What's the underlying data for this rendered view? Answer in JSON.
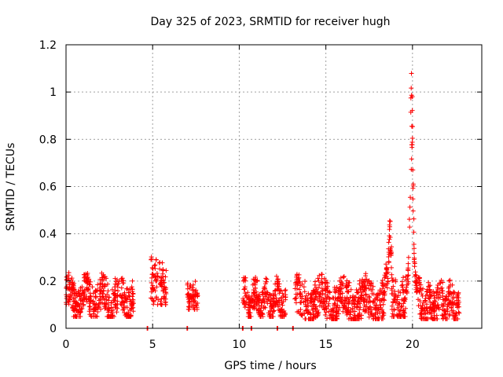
{
  "chart_data": {
    "type": "scatter",
    "title": "Day 325 of 2023, SRMTID for receiver hugh",
    "xlabel": "GPS time / hours",
    "ylabel": "SRMTID / TECUs",
    "xlim": [
      0,
      24
    ],
    "ylim": [
      0,
      1.2
    ],
    "xticks": [
      0,
      5,
      10,
      15,
      20
    ],
    "xtick_labels": [
      "0",
      "5",
      "10",
      "15",
      "20"
    ],
    "yticks": [
      0,
      0.2,
      0.4,
      0.6,
      0.8,
      1.0,
      1.2
    ],
    "ytick_labels": [
      "0",
      "0.2",
      "0.4",
      "0.6",
      "0.8",
      "1",
      "1.2"
    ],
    "grid": true,
    "marker": "+",
    "color": "#ff0000",
    "series": [
      {
        "name": "SRMTID",
        "clusters": [
          {
            "x_start": 0.0,
            "x_end": 3.9,
            "y_min": 0.05,
            "y_max": 0.24,
            "base": 0.13
          },
          {
            "x_start": 4.9,
            "x_end": 5.8,
            "y_min": 0.1,
            "y_max": 0.31,
            "base": 0.19
          },
          {
            "x_start": 7.0,
            "x_end": 7.6,
            "y_min": 0.08,
            "y_max": 0.21,
            "base": 0.13
          },
          {
            "x_start": 10.2,
            "x_end": 12.7,
            "y_min": 0.05,
            "y_max": 0.22,
            "base": 0.12
          },
          {
            "x_start": 13.2,
            "x_end": 18.4,
            "y_min": 0.04,
            "y_max": 0.26,
            "base": 0.11
          },
          {
            "x_start": 18.4,
            "x_end": 18.8,
            "y_min": 0.1,
            "y_max": 0.48,
            "base": 0.22
          },
          {
            "x_start": 18.8,
            "x_end": 19.6,
            "y_min": 0.05,
            "y_max": 0.3,
            "base": 0.1
          },
          {
            "x_start": 19.6,
            "x_end": 20.3,
            "y_min": 0.08,
            "y_max": 1.13,
            "base": 0.3
          },
          {
            "x_start": 20.3,
            "x_end": 22.7,
            "y_min": 0.04,
            "y_max": 0.25,
            "base": 0.1
          }
        ],
        "zero_points_x": [
          4.7,
          7.0,
          10.2,
          10.7,
          12.2,
          13.1
        ]
      }
    ]
  }
}
